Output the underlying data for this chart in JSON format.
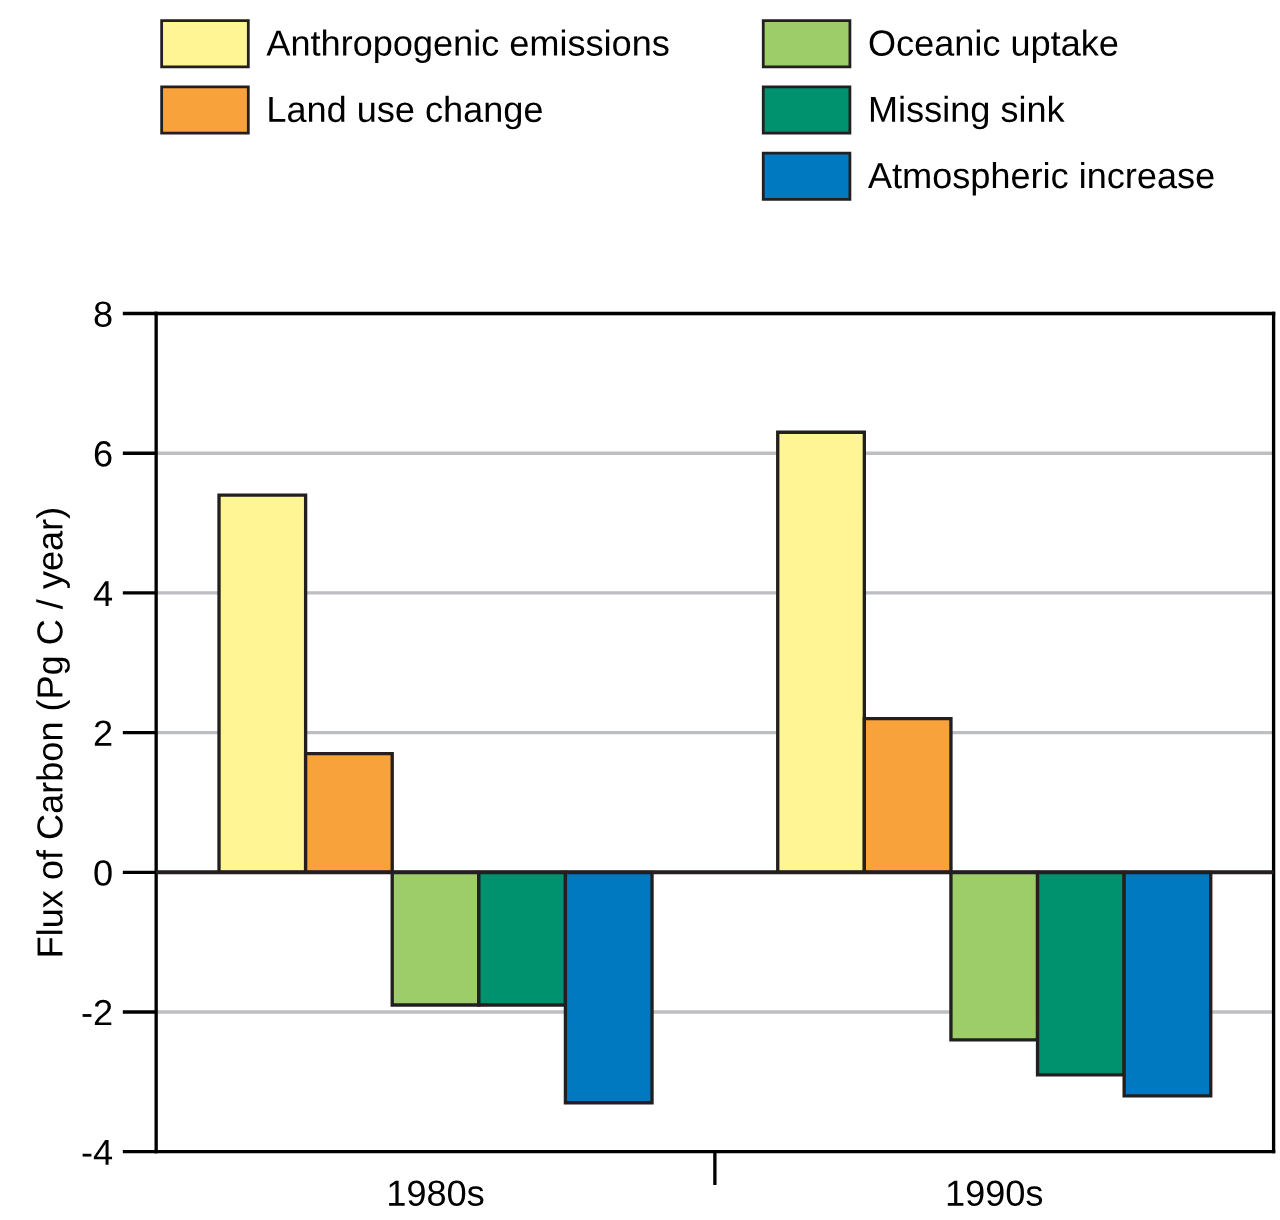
{
  "chart_data": {
    "type": "bar",
    "ylabel": "Flux of Carbon (Pg C / year)",
    "categories": [
      "1980s",
      "1990s"
    ],
    "series": [
      {
        "name": "Anthropogenic emissions",
        "color": "#fff594",
        "values": [
          5.4,
          6.3
        ]
      },
      {
        "name": "Land use change",
        "color": "#f7a23b",
        "values": [
          1.7,
          2.2
        ]
      },
      {
        "name": "Oceanic uptake",
        "color": "#9ccd69",
        "values": [
          -1.9,
          -2.4
        ]
      },
      {
        "name": "Missing sink",
        "color": "#00916e",
        "values": [
          -1.9,
          -2.9
        ]
      },
      {
        "name": "Atmospheric increase",
        "color": "#0079c1",
        "values": [
          -3.3,
          -3.2
        ]
      }
    ],
    "ylim": [
      -4,
      8
    ],
    "yticks": [
      -4,
      -2,
      0,
      2,
      4,
      6,
      8
    ],
    "grid": "y",
    "legend": "top"
  }
}
